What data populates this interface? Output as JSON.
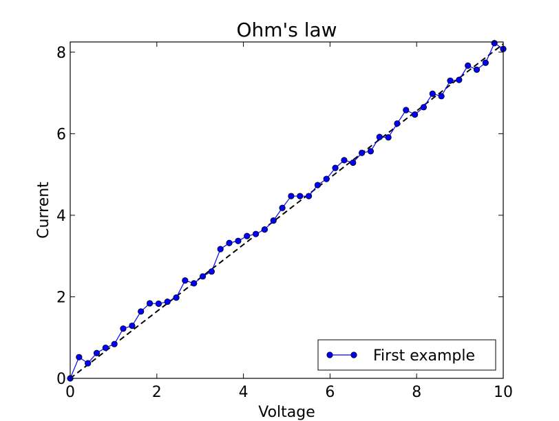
{
  "chart_data": {
    "type": "line",
    "title": "Ohm's law",
    "xlabel": "Voltage",
    "ylabel": "Current",
    "xlim": [
      0,
      10
    ],
    "ylim": [
      0,
      8.25
    ],
    "xticks": [
      0,
      2,
      4,
      6,
      8,
      10
    ],
    "yticks": [
      0,
      2,
      4,
      6,
      8
    ],
    "grid": false,
    "legend_position": "lower-right",
    "series": [
      {
        "name": "First example",
        "style": "solid line with circle markers",
        "color": "#0000ff",
        "x": [
          0,
          0.204,
          0.408,
          0.612,
          0.816,
          1.02,
          1.224,
          1.429,
          1.633,
          1.837,
          2.041,
          2.245,
          2.449,
          2.653,
          2.857,
          3.061,
          3.265,
          3.469,
          3.673,
          3.878,
          4.082,
          4.286,
          4.49,
          4.694,
          4.898,
          5.102,
          5.306,
          5.51,
          5.714,
          5.918,
          6.122,
          6.327,
          6.531,
          6.735,
          6.939,
          7.143,
          7.347,
          7.551,
          7.755,
          7.959,
          8.163,
          8.367,
          8.571,
          8.776,
          8.98,
          9.184,
          9.388,
          9.592,
          9.796,
          10
        ],
        "y": [
          0.0,
          0.52,
          0.37,
          0.62,
          0.75,
          0.84,
          1.22,
          1.29,
          1.64,
          1.84,
          1.83,
          1.88,
          1.98,
          2.4,
          2.33,
          2.5,
          2.62,
          3.17,
          3.32,
          3.37,
          3.49,
          3.54,
          3.65,
          3.87,
          4.18,
          4.47,
          4.47,
          4.47,
          4.74,
          4.89,
          5.16,
          5.35,
          5.29,
          5.53,
          5.57,
          5.92,
          5.91,
          6.25,
          6.58,
          6.47,
          6.65,
          6.98,
          6.92,
          7.3,
          7.32,
          7.67,
          7.57,
          7.74,
          8.22,
          8.08
        ]
      },
      {
        "name": "",
        "style": "dashed line",
        "color": "#000000",
        "x": [
          0,
          10
        ],
        "y": [
          0,
          8.2
        ]
      }
    ]
  }
}
